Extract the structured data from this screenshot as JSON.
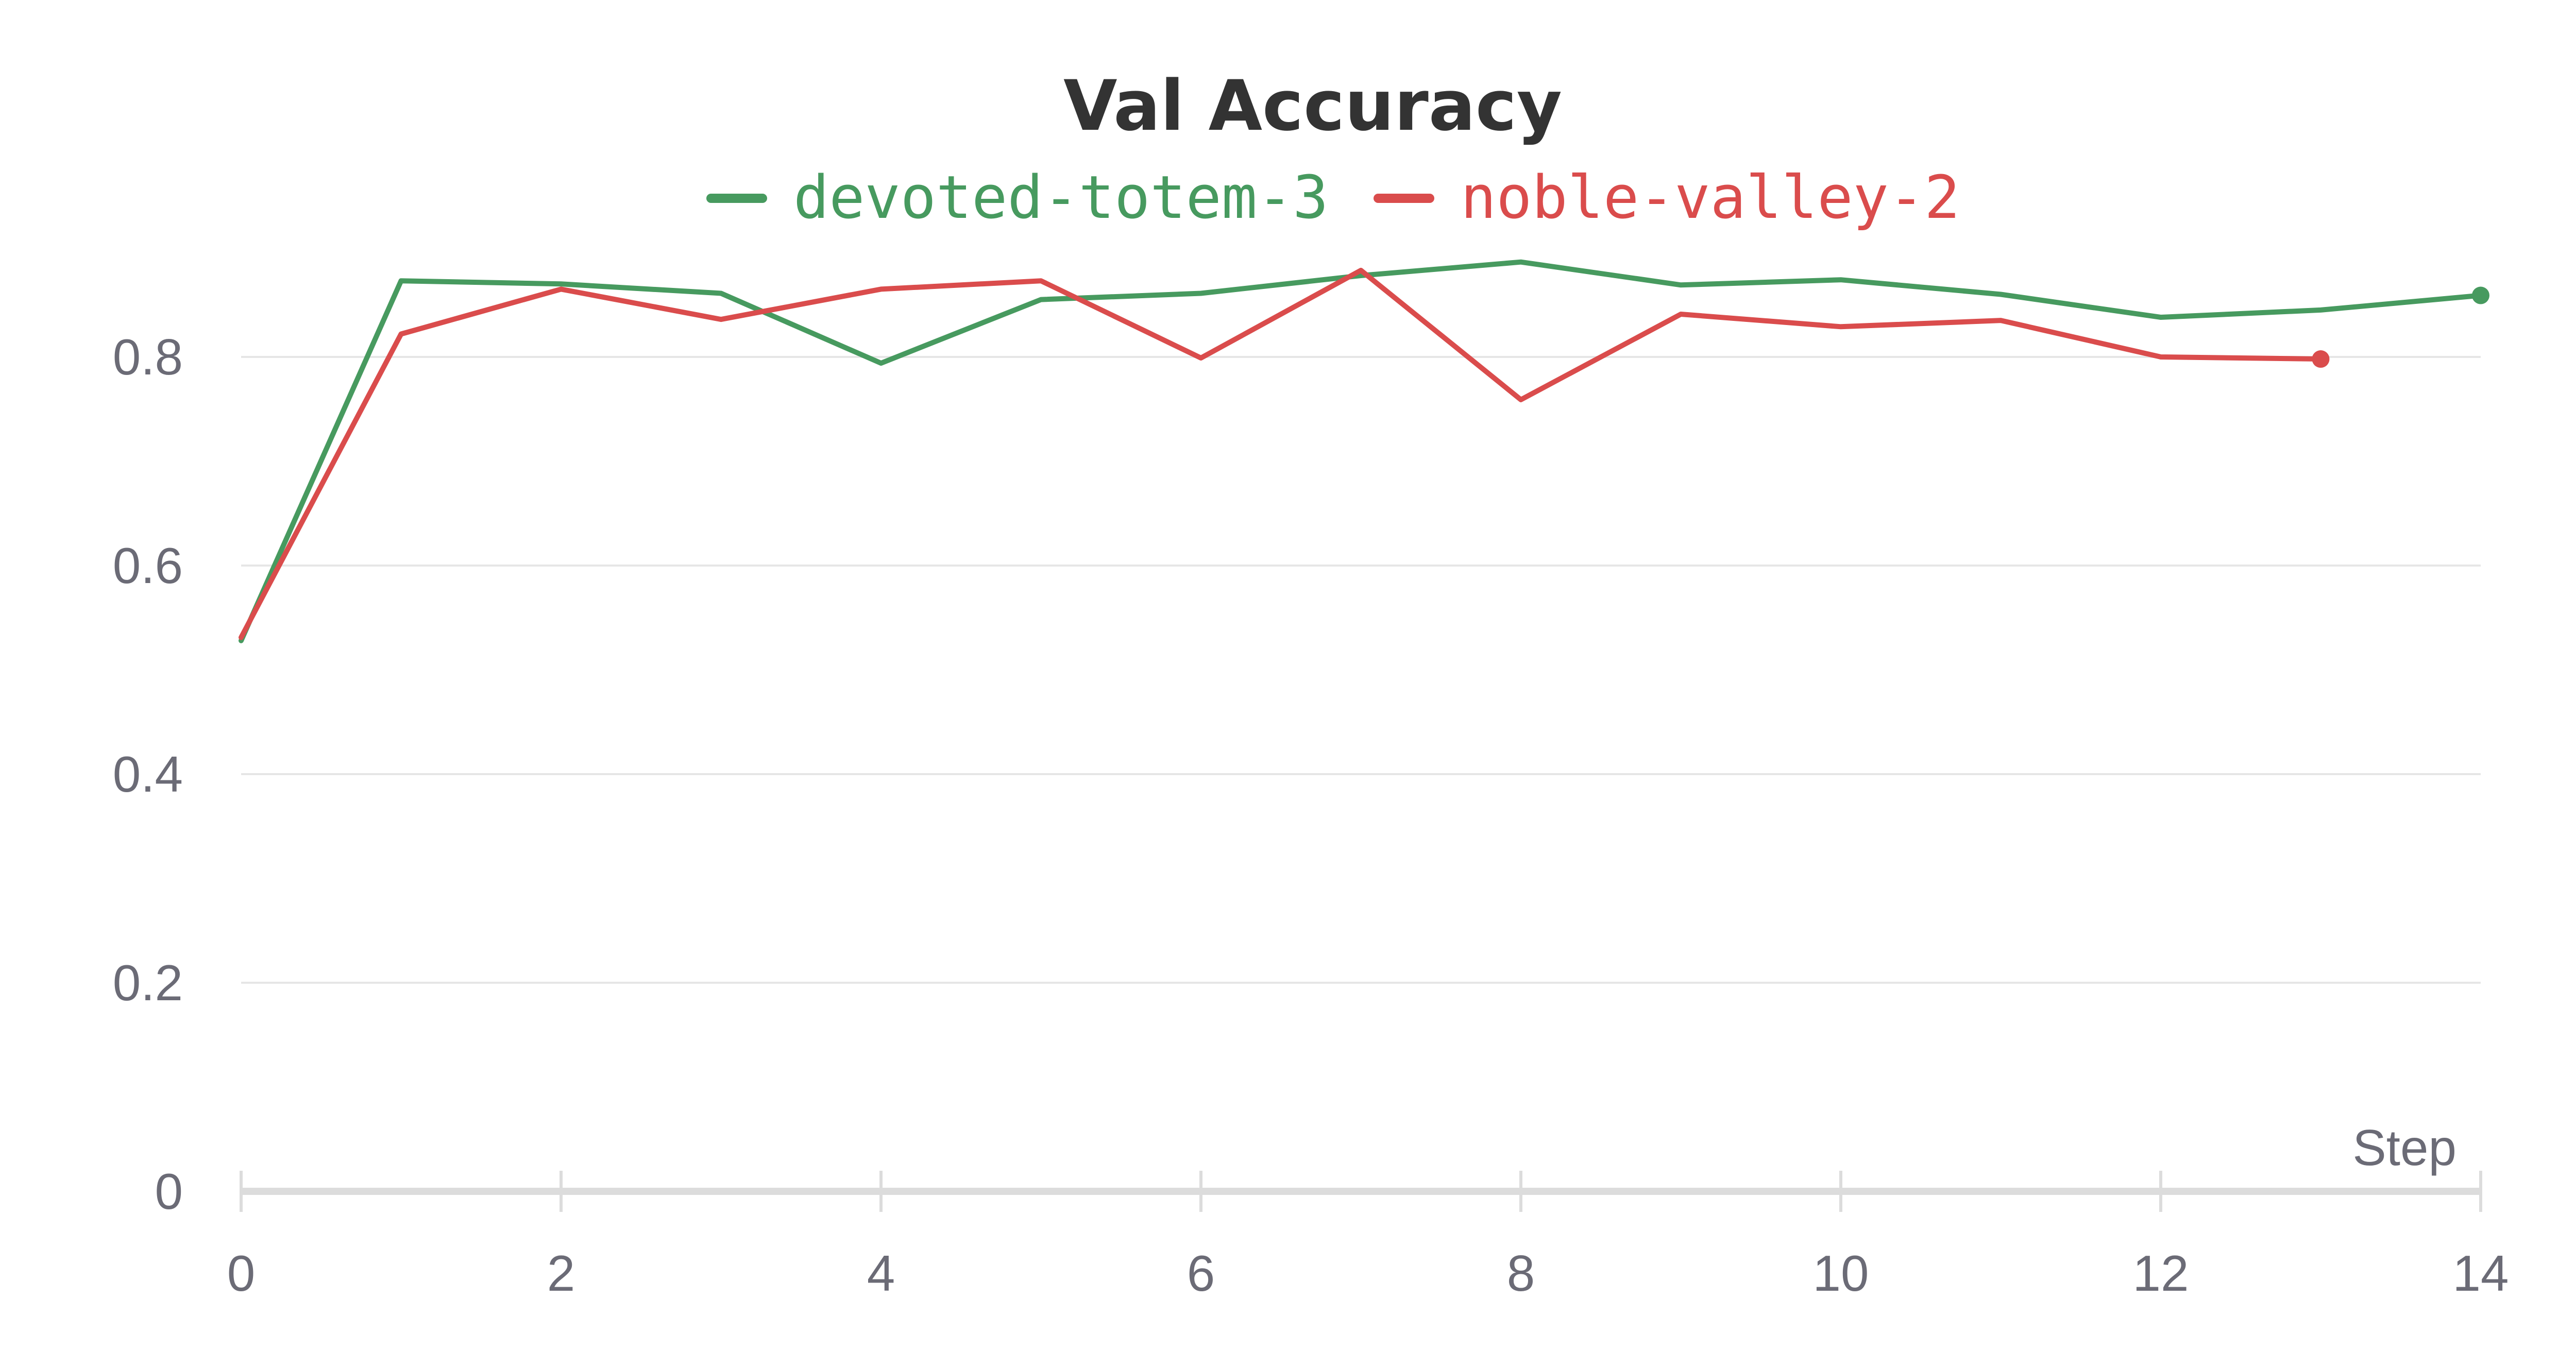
{
  "chart_data": {
    "type": "line",
    "title": "Val Accuracy",
    "xlabel": "Step",
    "ylabel": "",
    "xlim": [
      0,
      14
    ],
    "ylim": [
      0,
      0.9
    ],
    "x_ticks": [
      0,
      2,
      4,
      6,
      8,
      10,
      12,
      14
    ],
    "x_tick_labels": [
      "0",
      "2",
      "4",
      "6",
      "8",
      "10",
      "12",
      "14"
    ],
    "y_ticks": [
      0,
      0.2,
      0.4,
      0.6,
      0.8
    ],
    "y_tick_labels": [
      "0",
      "0.2",
      "0.4",
      "0.6",
      "0.8"
    ],
    "grid": true,
    "legend_position": "top-center",
    "series": [
      {
        "name": "devoted-totem-3",
        "color": "#479a5f",
        "x": [
          0,
          1,
          2,
          3,
          4,
          5,
          6,
          7,
          8,
          9,
          10,
          11,
          12,
          13,
          14
        ],
        "values": [
          0.528,
          0.873,
          0.87,
          0.861,
          0.794,
          0.855,
          0.861,
          0.878,
          0.891,
          0.869,
          0.874,
          0.86,
          0.838,
          0.845,
          0.859
        ]
      },
      {
        "name": "noble-valley-2",
        "color": "#da4c4c",
        "x": [
          0,
          1,
          2,
          3,
          4,
          5,
          6,
          7,
          8,
          9,
          10,
          11,
          12,
          13
        ],
        "values": [
          0.531,
          0.822,
          0.865,
          0.836,
          0.865,
          0.873,
          0.799,
          0.883,
          0.759,
          0.841,
          0.829,
          0.835,
          0.8,
          0.798
        ]
      }
    ]
  }
}
